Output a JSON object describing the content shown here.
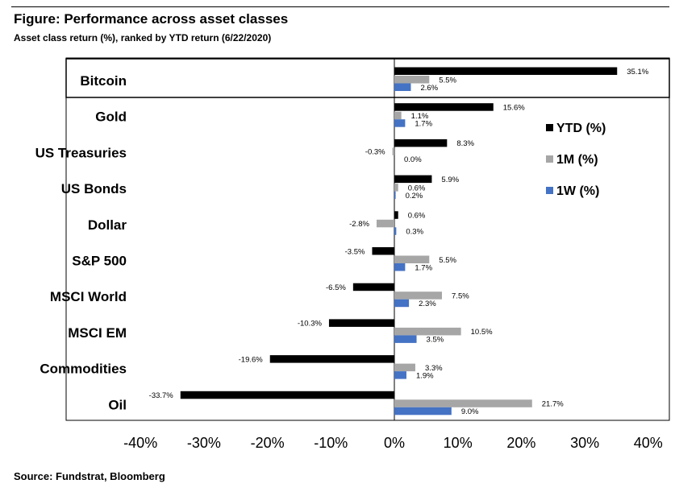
{
  "title": "Figure: Performance across asset classes",
  "subtitle": "Asset class return (%), ranked by YTD return (6/22/2020)",
  "source": "Source: Fundstrat, Bloomberg",
  "chart_data": {
    "type": "bar",
    "orientation": "horizontal",
    "categories": [
      "Bitcoin",
      "Gold",
      "US Treasuries",
      "US Bonds",
      "Dollar",
      "S&P 500",
      "MSCI World",
      "MSCI EM",
      "Commodities",
      "Oil"
    ],
    "series": [
      {
        "name": "YTD (%)",
        "color": "#000000",
        "values": [
          35.1,
          15.6,
          8.3,
          5.9,
          0.6,
          -3.5,
          -6.5,
          -10.3,
          -19.6,
          -33.7
        ],
        "labels": [
          "35.1%",
          "15.6%",
          "8.3%",
          "5.9%",
          "0.6%",
          "-3.5%",
          "-6.5%",
          "-10.3%",
          "-19.6%",
          "-33.7%"
        ]
      },
      {
        "name": "1M (%)",
        "color": "#a6a6a6",
        "values": [
          5.5,
          1.1,
          -0.3,
          0.6,
          -2.8,
          5.5,
          7.5,
          10.5,
          3.3,
          21.7
        ],
        "labels": [
          "5.5%",
          "1.1%",
          "-0.3%",
          "0.6%",
          "-2.8%",
          "5.5%",
          "7.5%",
          "10.5%",
          "3.3%",
          "21.7%"
        ]
      },
      {
        "name": "1W (%)",
        "color": "#4472c4",
        "values": [
          2.6,
          1.7,
          0.0,
          0.2,
          0.3,
          1.7,
          2.3,
          3.5,
          1.9,
          9.0
        ],
        "labels": [
          "2.6%",
          "1.7%",
          "0.0%",
          "0.2%",
          "0.3%",
          "1.7%",
          "2.3%",
          "3.5%",
          "1.9%",
          "9.0%"
        ]
      }
    ],
    "xlim": [
      -40,
      40
    ],
    "xticks": [
      "-40%",
      "-30%",
      "-20%",
      "-10%",
      "0%",
      "10%",
      "20%",
      "30%",
      "40%"
    ],
    "legend_position": "right",
    "highlighted_category": "Bitcoin"
  }
}
